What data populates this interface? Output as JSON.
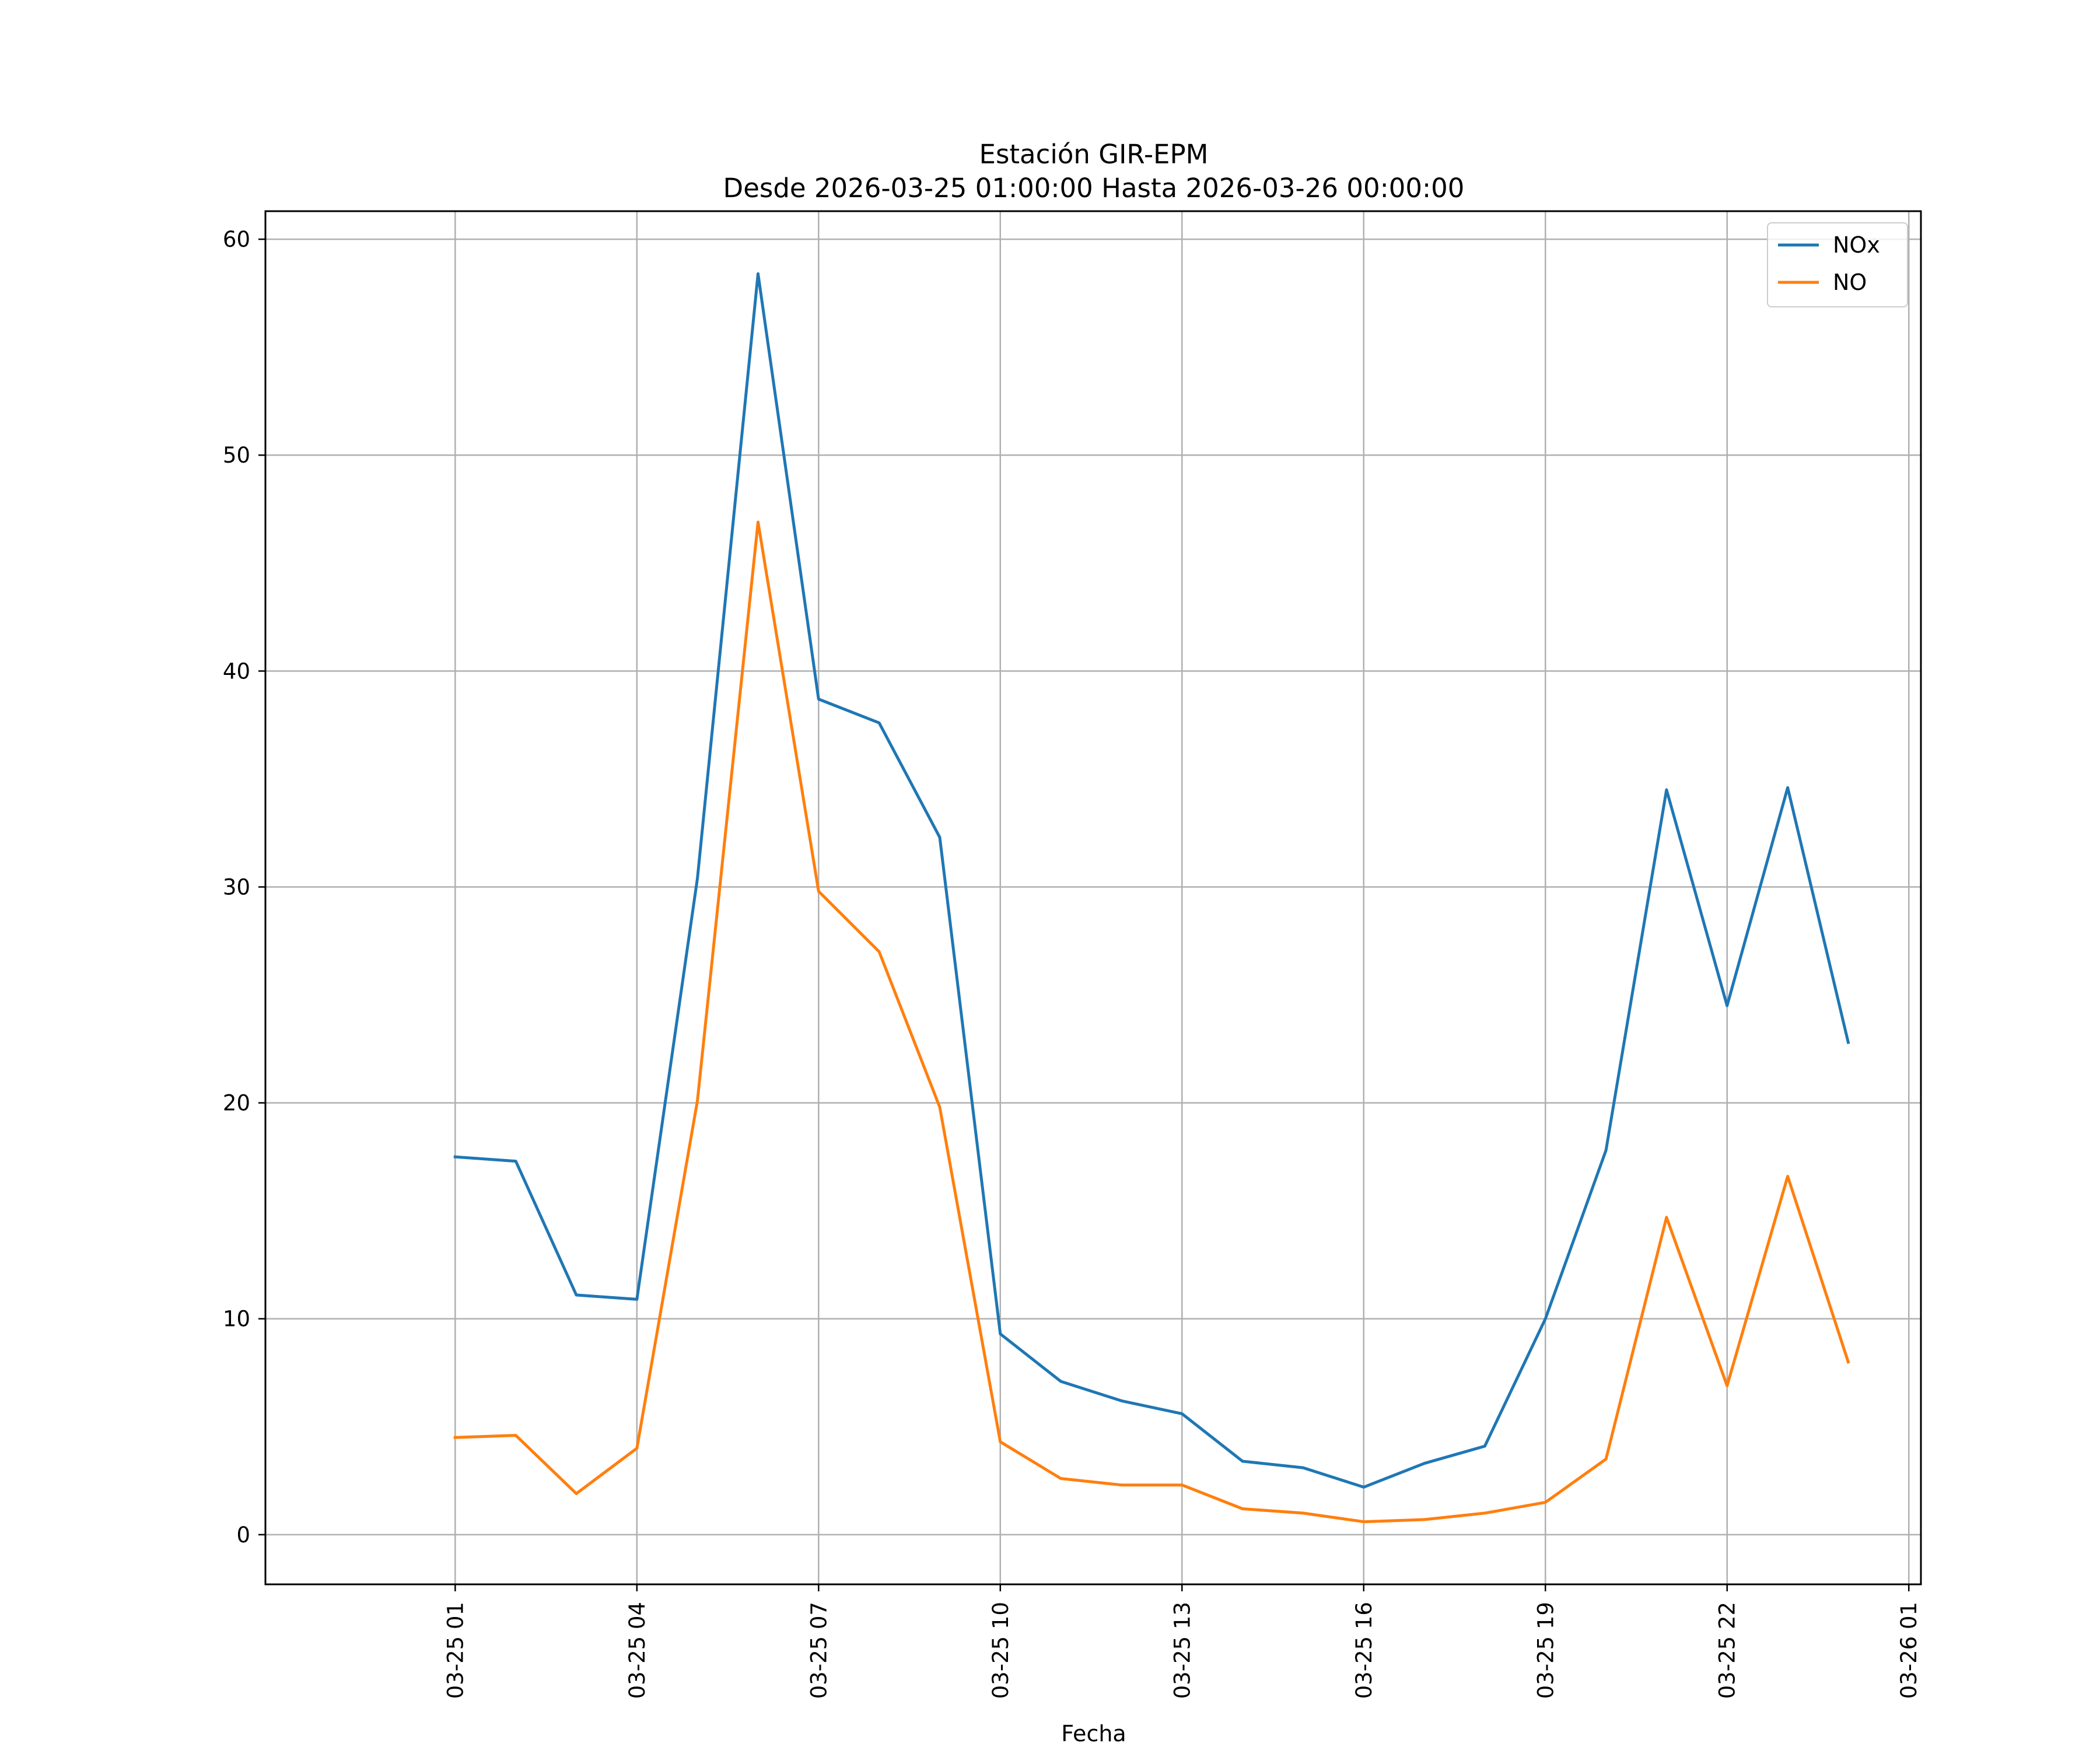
{
  "chart_data": {
    "type": "line",
    "title": "Estación GIR-EPM",
    "subtitle": "Desde 2026-03-25 01:00:00 Hasta 2026-03-26 00:00:00",
    "xlabel": "Fecha",
    "ylabel": "",
    "x": [
      "2026-03-25 01:00",
      "2026-03-25 02:00",
      "2026-03-25 03:00",
      "2026-03-25 04:00",
      "2026-03-25 05:00",
      "2026-03-25 06:00",
      "2026-03-25 07:00",
      "2026-03-25 08:00",
      "2026-03-25 09:00",
      "2026-03-25 10:00",
      "2026-03-25 11:00",
      "2026-03-25 12:00",
      "2026-03-25 13:00",
      "2026-03-25 14:00",
      "2026-03-25 15:00",
      "2026-03-25 16:00",
      "2026-03-25 17:00",
      "2026-03-25 18:00",
      "2026-03-25 19:00",
      "2026-03-25 20:00",
      "2026-03-25 21:00",
      "2026-03-25 22:00",
      "2026-03-25 23:00",
      "2026-03-26 00:00"
    ],
    "xlim": [
      "2026-03-24 21:52",
      "2026-03-26 01:12"
    ],
    "x_ticks": [
      "2026-03-25 01:00",
      "2026-03-25 04:00",
      "2026-03-25 07:00",
      "2026-03-25 10:00",
      "2026-03-25 13:00",
      "2026-03-25 16:00",
      "2026-03-25 19:00",
      "2026-03-25 22:00",
      "2026-03-26 01:00"
    ],
    "x_tick_labels": [
      "03-25 01",
      "03-25 04",
      "03-25 07",
      "03-25 10",
      "03-25 13",
      "03-25 16",
      "03-25 19",
      "03-25 22",
      "03-26 01"
    ],
    "ylim": [
      -2.3,
      61.3
    ],
    "y_ticks": [
      0,
      10,
      20,
      30,
      40,
      50,
      60
    ],
    "grid": true,
    "legend_position": "top-right",
    "series": [
      {
        "name": "NOx",
        "color": "#1f77b4",
        "values": [
          17.5,
          17.3,
          11.1,
          10.9,
          30.4,
          58.4,
          38.7,
          37.6,
          32.3,
          9.3,
          7.1,
          6.2,
          5.6,
          3.4,
          3.1,
          2.2,
          3.3,
          4.1,
          10.0,
          17.8,
          34.5,
          24.5,
          34.6,
          22.8
        ]
      },
      {
        "name": "NO",
        "color": "#ff7f0e",
        "values": [
          4.5,
          4.6,
          1.9,
          4.0,
          20.1,
          46.9,
          29.8,
          27.0,
          19.8,
          4.3,
          2.6,
          2.3,
          2.3,
          1.2,
          1.0,
          0.6,
          0.7,
          1.0,
          1.5,
          3.5,
          14.7,
          6.9,
          16.6,
          8.0
        ]
      }
    ]
  }
}
